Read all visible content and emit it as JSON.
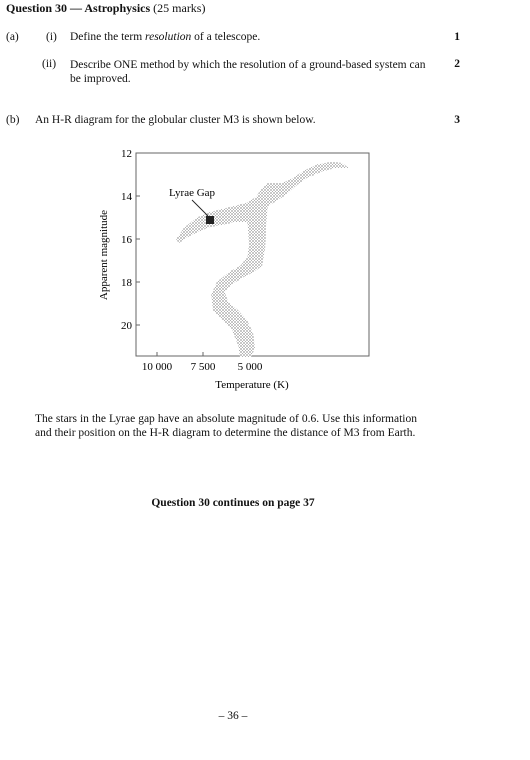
{
  "header": {
    "question": "Question 30",
    "dash": " — ",
    "topic": "Astrophysics",
    "marks": " (25 marks)"
  },
  "part_a": {
    "label": "(a)",
    "i": {
      "label": "(i)",
      "pre": "Define the term ",
      "term": "resolution",
      "post": " of a telescope.",
      "marks": "1"
    },
    "ii": {
      "label": "(ii)",
      "text": "Describe ONE method by which the resolution of a ground-based system can be improved.",
      "marks": "2"
    }
  },
  "part_b": {
    "label": "(b)",
    "text": "An H-R diagram for the globular cluster M3 is shown below.",
    "marks": "3",
    "question_text": "The stars in the Lyrae gap have an absolute magnitude of 0.6. Use this information and their position on the H-R diagram to determine the distance of M3 from Earth."
  },
  "diagram": {
    "ylabel": "Apparent magnitude",
    "xlabel": "Temperature (K)",
    "y_ticks": [
      "12",
      "14",
      "16",
      "18",
      "20"
    ],
    "x_ticks": [
      "10 000",
      "7 500",
      "5 000"
    ],
    "annotation": "Lyrae Gap"
  },
  "footer": {
    "continues": "Question 30 continues on page 37",
    "page": "– 36 –"
  }
}
